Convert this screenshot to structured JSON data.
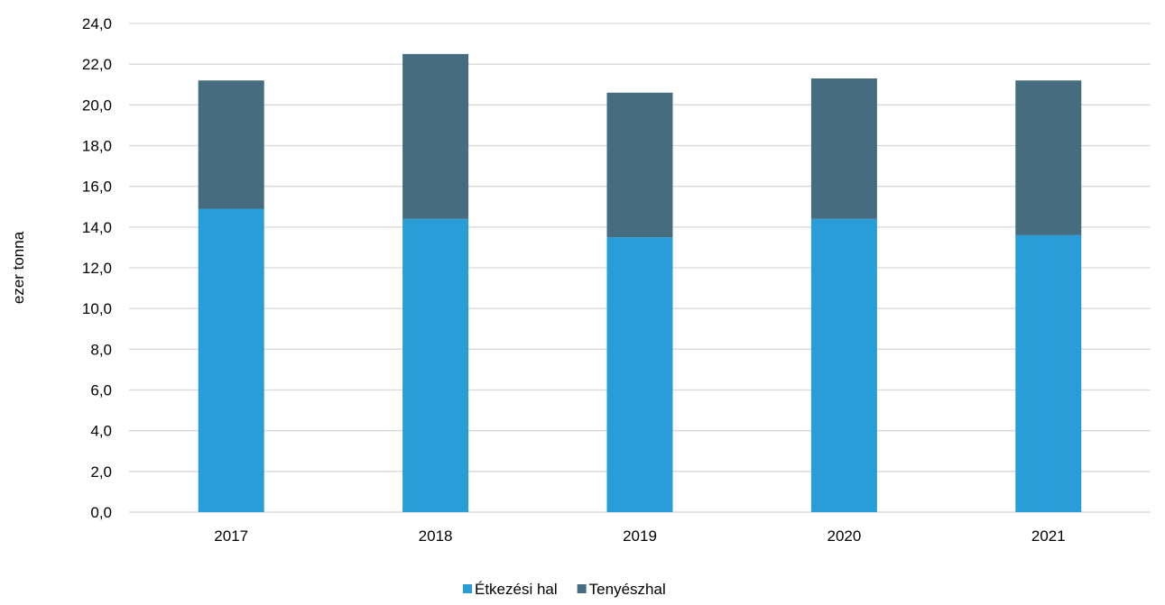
{
  "chart_data": {
    "type": "bar",
    "stacked": true,
    "categories": [
      "2017",
      "2018",
      "2019",
      "2020",
      "2021"
    ],
    "series": [
      {
        "name": "Étkezési hal",
        "color": "#299DD8",
        "values": [
          14.9,
          14.4,
          13.5,
          14.4,
          13.6
        ]
      },
      {
        "name": "Tenyészhal",
        "color": "#466C80",
        "values": [
          6.3,
          8.1,
          7.1,
          6.9,
          7.6
        ]
      }
    ],
    "title": "",
    "xlabel": "",
    "ylabel": "ezer tonna",
    "ylim": [
      0,
      24
    ],
    "ytick_step": 2,
    "ytick_labels": [
      "0,0",
      "2,0",
      "4,0",
      "6,0",
      "8,0",
      "10,0",
      "12,0",
      "14,0",
      "16,0",
      "18,0",
      "20,0",
      "22,0",
      "24,0"
    ],
    "grid": true,
    "gridline_color": "#D9D9D9",
    "legend_position": "bottom"
  }
}
